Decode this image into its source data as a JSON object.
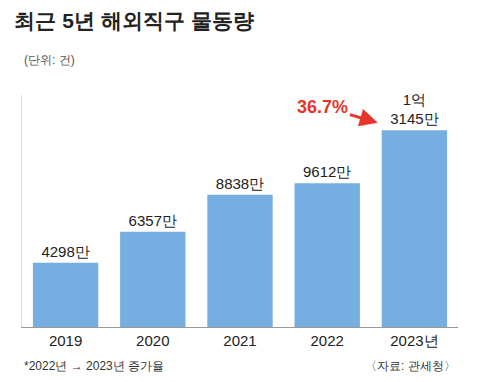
{
  "chart_data": {
    "type": "bar",
    "title": "최근 5년 해외직구 물동량",
    "subtitle": "(단위: 건)",
    "categories": [
      "2019",
      "2020",
      "2021",
      "2022",
      "2023년"
    ],
    "values": [
      4298,
      6357,
      8838,
      9612,
      13145
    ],
    "value_labels": [
      "4298만",
      "6357만",
      "8838만",
      "9612만",
      "1억 3145만"
    ],
    "color": "#77aee2",
    "ylim": [
      0,
      15500
    ],
    "yticks": [],
    "data_labels": true,
    "tick_labels": "x",
    "grid": false,
    "annotations": [
      {
        "text": "36.7%",
        "from": "2022",
        "to": "2023년",
        "color": "#e8352b"
      }
    ],
    "footnote": "*2022년 → 2023년 증가율",
    "source": "〈자료: 관세청〉"
  }
}
